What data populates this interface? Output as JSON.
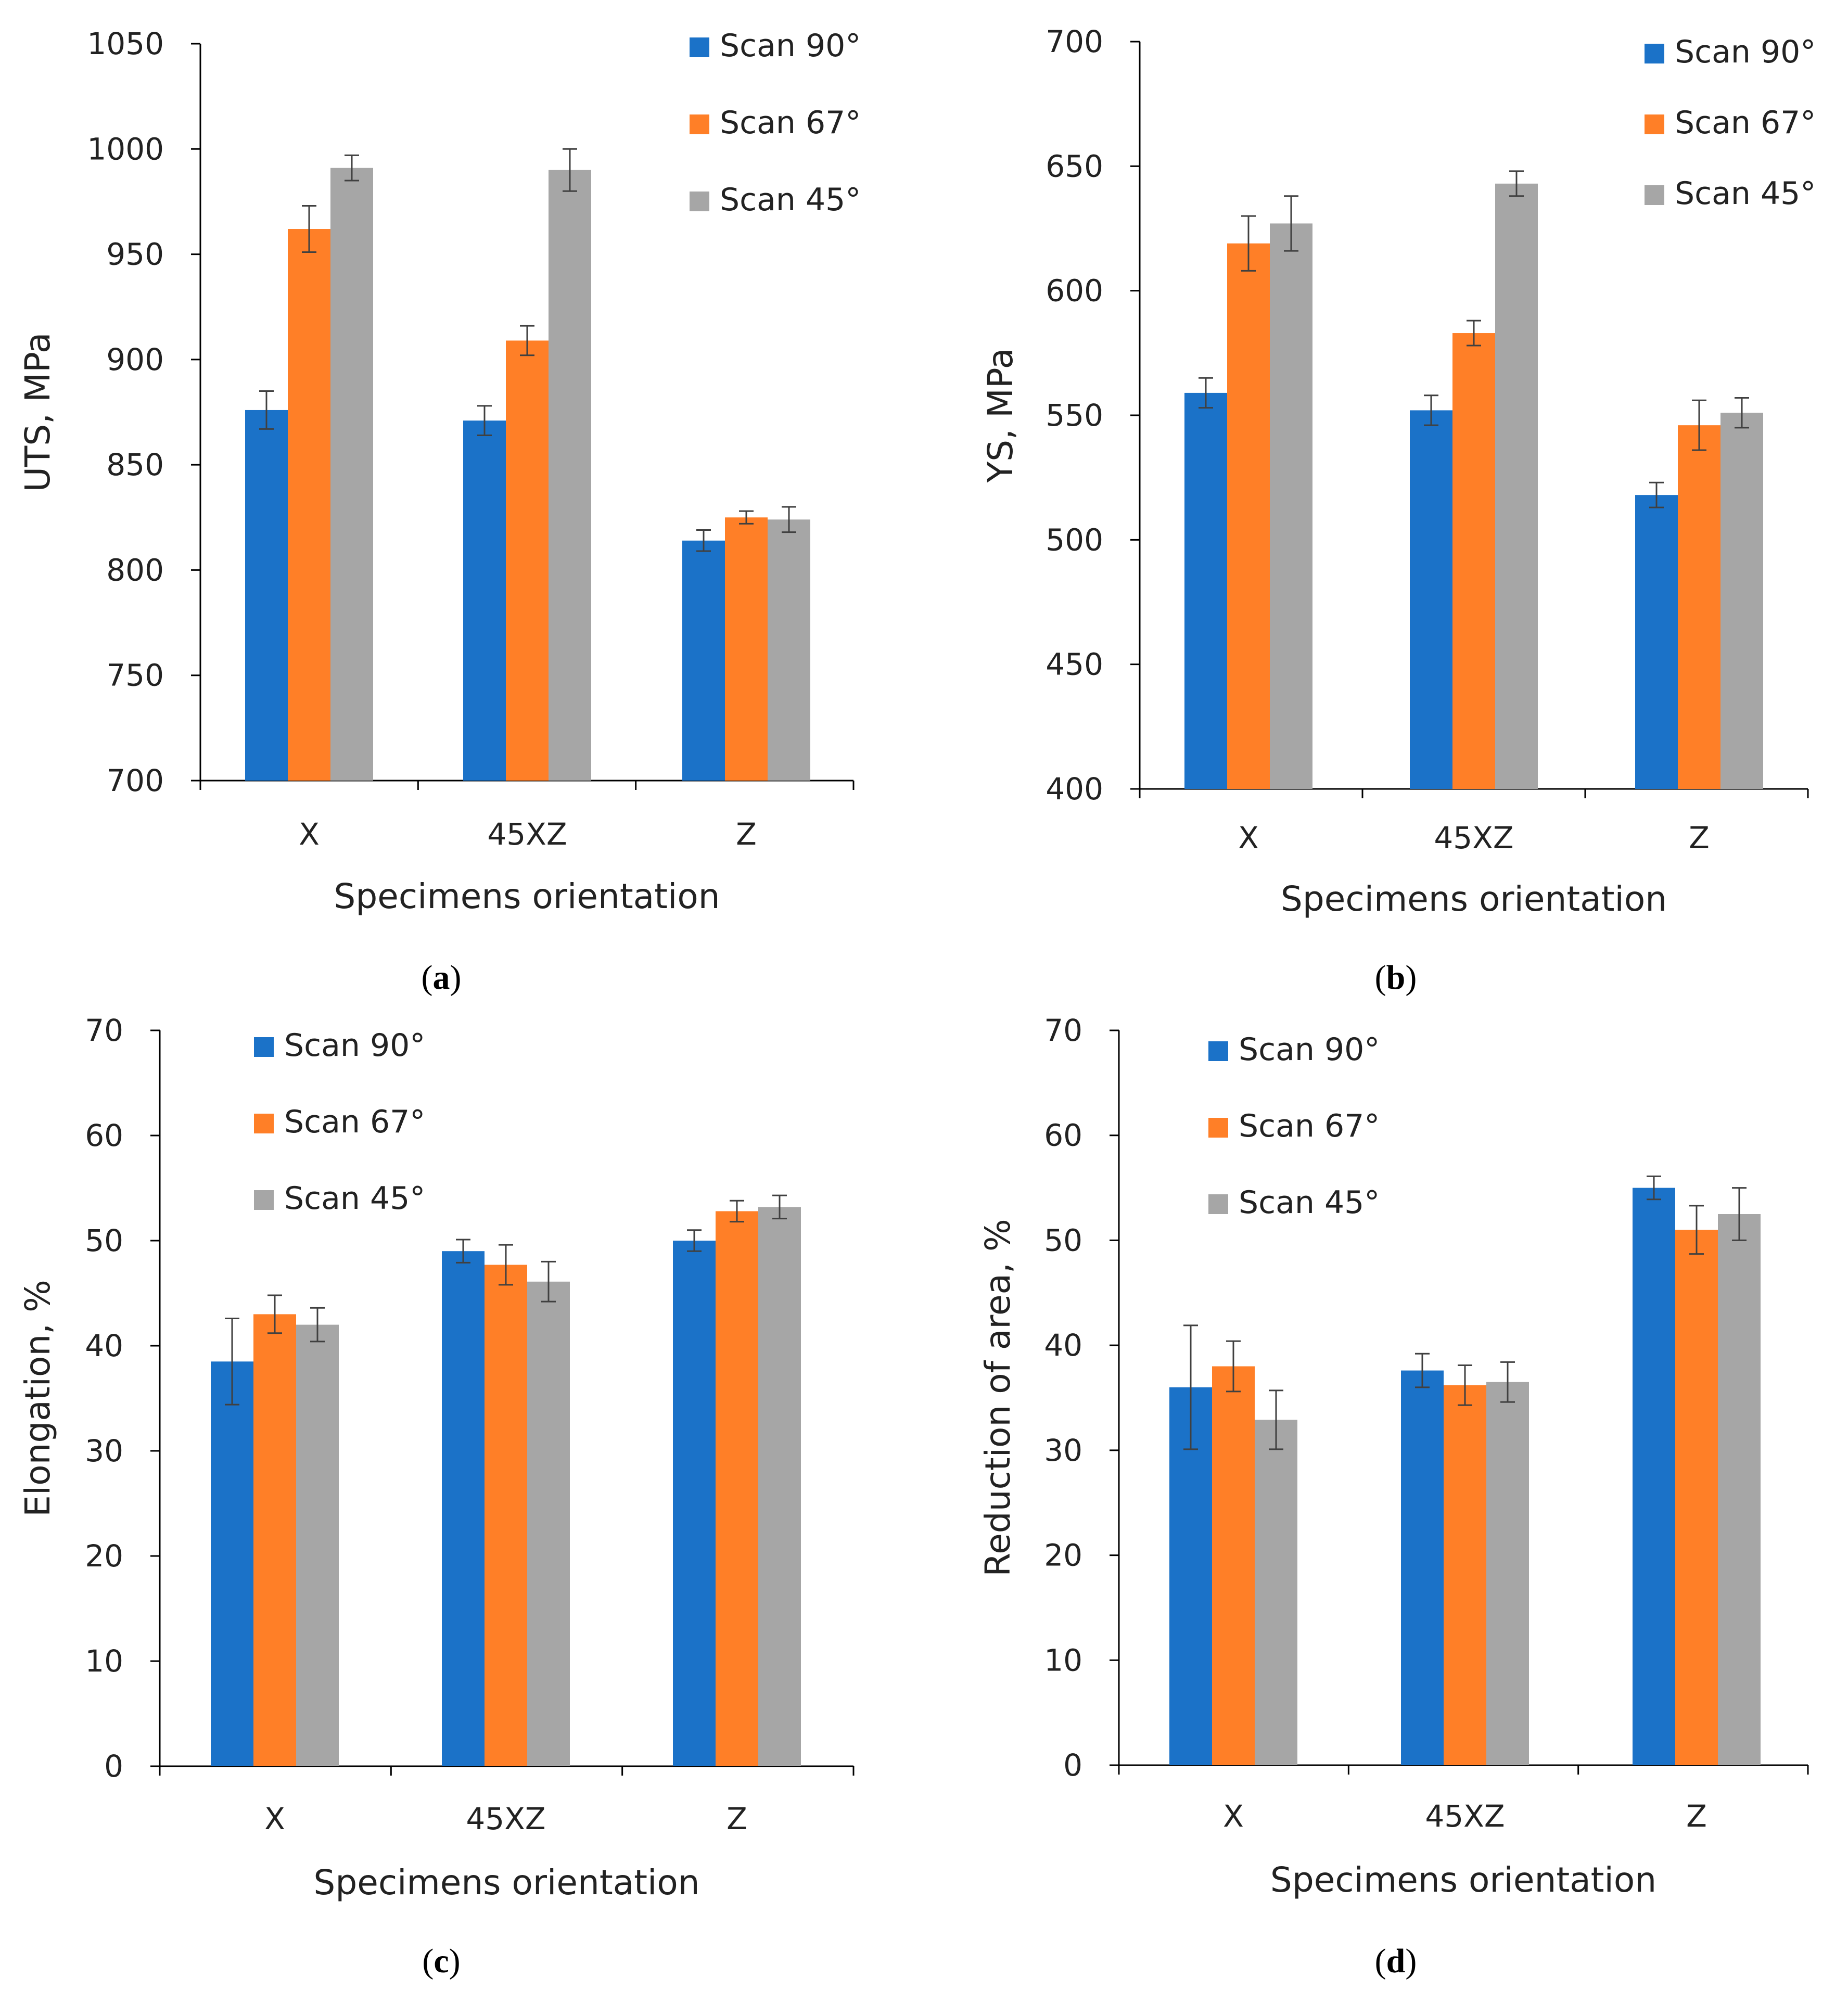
{
  "colors": {
    "scan90": "#1b72c8",
    "scan67": "#ff7f27",
    "scan45": "#a6a6a6",
    "axis": "#000000",
    "text": "#222222",
    "errorbar": "#404040"
  },
  "chart_data": [
    {
      "id": "a",
      "type": "bar",
      "panel_label": "a",
      "title": "",
      "xlabel": "Specimens orientation",
      "ylabel": "UTS, MPa",
      "ylim": [
        700,
        1050
      ],
      "yticks": [
        700,
        750,
        800,
        850,
        900,
        950,
        1000,
        1050
      ],
      "categories": [
        "X",
        "45XZ",
        "Z"
      ],
      "legend_position": "top-right",
      "series": [
        {
          "name": "Scan 90°",
          "color_key": "scan90",
          "values": [
            876,
            871,
            814
          ],
          "errors": [
            9,
            7,
            5
          ]
        },
        {
          "name": "Scan 67°",
          "color_key": "scan67",
          "values": [
            962,
            909,
            825
          ],
          "errors": [
            11,
            7,
            3
          ]
        },
        {
          "name": "Scan 45°",
          "color_key": "scan45",
          "values": [
            991,
            990,
            824
          ],
          "errors": [
            6,
            10,
            6
          ]
        }
      ]
    },
    {
      "id": "b",
      "type": "bar",
      "panel_label": "b",
      "title": "",
      "xlabel": "Specimens orientation",
      "ylabel": "YS, MPa",
      "ylim": [
        400,
        700
      ],
      "yticks": [
        400,
        450,
        500,
        550,
        600,
        650,
        700
      ],
      "categories": [
        "X",
        "45XZ",
        "Z"
      ],
      "legend_position": "top-right",
      "series": [
        {
          "name": "Scan 90°",
          "color_key": "scan90",
          "values": [
            559,
            552,
            518
          ],
          "errors": [
            6,
            6,
            5
          ]
        },
        {
          "name": "Scan 67°",
          "color_key": "scan67",
          "values": [
            619,
            583,
            546
          ],
          "errors": [
            11,
            5,
            10
          ]
        },
        {
          "name": "Scan 45°",
          "color_key": "scan45",
          "values": [
            627,
            643,
            551
          ],
          "errors": [
            11,
            5,
            6
          ]
        }
      ]
    },
    {
      "id": "c",
      "type": "bar",
      "panel_label": "c",
      "title": "",
      "xlabel": "Specimens orientation",
      "ylabel": "Elongation, %",
      "ylim": [
        0,
        70
      ],
      "yticks": [
        0,
        10,
        20,
        30,
        40,
        50,
        60,
        70
      ],
      "categories": [
        "X",
        "45XZ",
        "Z"
      ],
      "legend_position": "top-left",
      "series": [
        {
          "name": "Scan 90°",
          "color_key": "scan90",
          "values": [
            38.5,
            49.0,
            50.0
          ],
          "errors": [
            4.1,
            1.1,
            1.0
          ]
        },
        {
          "name": "Scan 67°",
          "color_key": "scan67",
          "values": [
            43.0,
            47.7,
            52.8
          ],
          "errors": [
            1.8,
            1.9,
            1.0
          ]
        },
        {
          "name": "Scan 45°",
          "color_key": "scan45",
          "values": [
            42.0,
            46.1,
            53.2
          ],
          "errors": [
            1.6,
            1.9,
            1.1
          ]
        }
      ]
    },
    {
      "id": "d",
      "type": "bar",
      "panel_label": "d",
      "title": "",
      "xlabel": "Specimens orientation",
      "ylabel": "Reduction of area, %",
      "ylim": [
        0,
        70
      ],
      "yticks": [
        0,
        10,
        20,
        30,
        40,
        50,
        60,
        70
      ],
      "categories": [
        "X",
        "45XZ",
        "Z"
      ],
      "legend_position": "top-left",
      "series": [
        {
          "name": "Scan 90°",
          "color_key": "scan90",
          "values": [
            36.0,
            37.6,
            55.0
          ],
          "errors": [
            5.9,
            1.6,
            1.1
          ]
        },
        {
          "name": "Scan 67°",
          "color_key": "scan67",
          "values": [
            38.0,
            36.2,
            51.0
          ],
          "errors": [
            2.4,
            1.9,
            2.3
          ]
        },
        {
          "name": "Scan 45°",
          "color_key": "scan45",
          "values": [
            32.9,
            36.5,
            52.5
          ],
          "errors": [
            2.8,
            1.9,
            2.5
          ]
        }
      ]
    }
  ]
}
